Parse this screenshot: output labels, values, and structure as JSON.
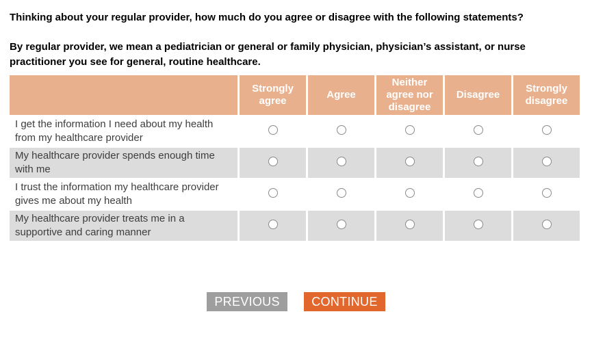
{
  "question": {
    "text": "Thinking about your regular provider, how much do you agree or disagree with the following statements?",
    "subtext": "By regular provider, we mean a pediatrician or general or family physician, physician’s assistant, or nurse practitioner you see for general, routine healthcare."
  },
  "matrix": {
    "columns": [
      "Strongly agree",
      "Agree",
      "Neither agree nor disagree",
      "Disagree",
      "Strongly disagree"
    ],
    "rows": [
      {
        "statement": "I get the information I need about my health from my healthcare provider"
      },
      {
        "statement": "My healthcare provider spends enough time with me"
      },
      {
        "statement": "I trust the information my healthcare provider gives me about my health"
      },
      {
        "statement": "My healthcare provider treats me in a supportive and caring manner"
      }
    ],
    "radio_state": "unselected"
  },
  "buttons": {
    "previous": "PREVIOUS",
    "continue": "CONTINUE"
  },
  "colors": {
    "header_bg": "#E8B08C",
    "row_alt_bg": "#DCDCDC",
    "previous_bg": "#9E9E9E",
    "continue_bg": "#E2672C",
    "radio_border": "#8A8A8A"
  }
}
